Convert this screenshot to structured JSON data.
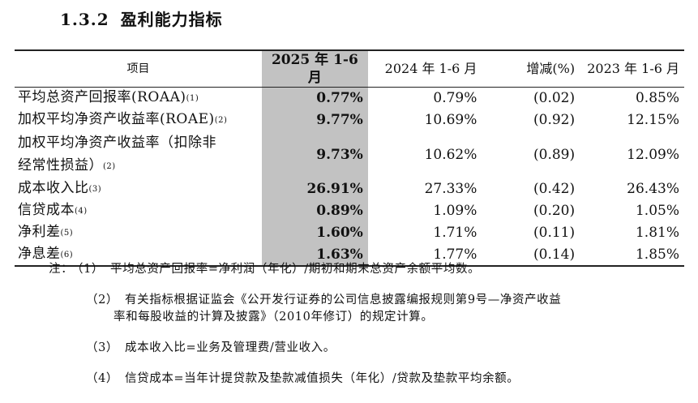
{
  "section": {
    "number": "1.3.2",
    "title": "盈利能力指标"
  },
  "table": {
    "headers": {
      "item": "项目",
      "current": "2025 年 1-6 月",
      "prev": "2024 年 1-6 月",
      "change": "增减(%)",
      "prior": "2023 年 1-6 月"
    },
    "rows": [
      {
        "name_line1": "平均总资产回报率(ROAA)",
        "name_line2": "",
        "note": "(1)",
        "current": "0.77%",
        "prev": "0.79%",
        "change": "(0.02)",
        "prior": "0.85%"
      },
      {
        "name_line1": "加权平均净资产收益率(ROAE)",
        "name_line2": "",
        "note": "(2)",
        "current": "9.77%",
        "prev": "10.69%",
        "change": "(0.92)",
        "prior": "12.15%"
      },
      {
        "name_line1": "加权平均净资产收益率（扣除非",
        "name_line2": "经常性损益）",
        "note": "(2)",
        "current": "9.73%",
        "prev": "10.62%",
        "change": "(0.89)",
        "prior": "12.09%"
      },
      {
        "name_line1": "成本收入比",
        "name_line2": "",
        "note": "(3)",
        "current": "26.91%",
        "prev": "27.33%",
        "change": "(0.42)",
        "prior": "26.43%"
      },
      {
        "name_line1": "信贷成本",
        "name_line2": "",
        "note": "(4)",
        "current": "0.89%",
        "prev": "1.09%",
        "change": "(0.20)",
        "prior": "1.05%"
      },
      {
        "name_line1": "净利差",
        "name_line2": "",
        "note": "(5)",
        "current": "1.60%",
        "prev": "1.71%",
        "change": "(0.11)",
        "prior": "1.81%"
      },
      {
        "name_line1": "净息差",
        "name_line2": "",
        "note": "(6)",
        "current": "1.63%",
        "prev": "1.77%",
        "change": "(0.14)",
        "prior": "1.85%"
      }
    ]
  },
  "notes": {
    "lead": "注：",
    "items": [
      {
        "index": "（1）",
        "line1": "平均总资产回报率=净利润（年化）/期初和期末总资产余额平均数。",
        "line2": ""
      },
      {
        "index": "（2）",
        "line1": "有关指标根据证监会《公开发行证券的公司信息披露编报规则第9号—净资产收益",
        "line2": "率和每股收益的计算及披露》（2010年修订）的规定计算。"
      },
      {
        "index": "（3）",
        "line1": "成本收入比=业务及管理费/营业收入。",
        "line2": ""
      },
      {
        "index": "（4）",
        "line1": "信贷成本=当年计提贷款及垫款减值损失（年化）/贷款及垫款平均余额。",
        "line2": ""
      }
    ]
  }
}
